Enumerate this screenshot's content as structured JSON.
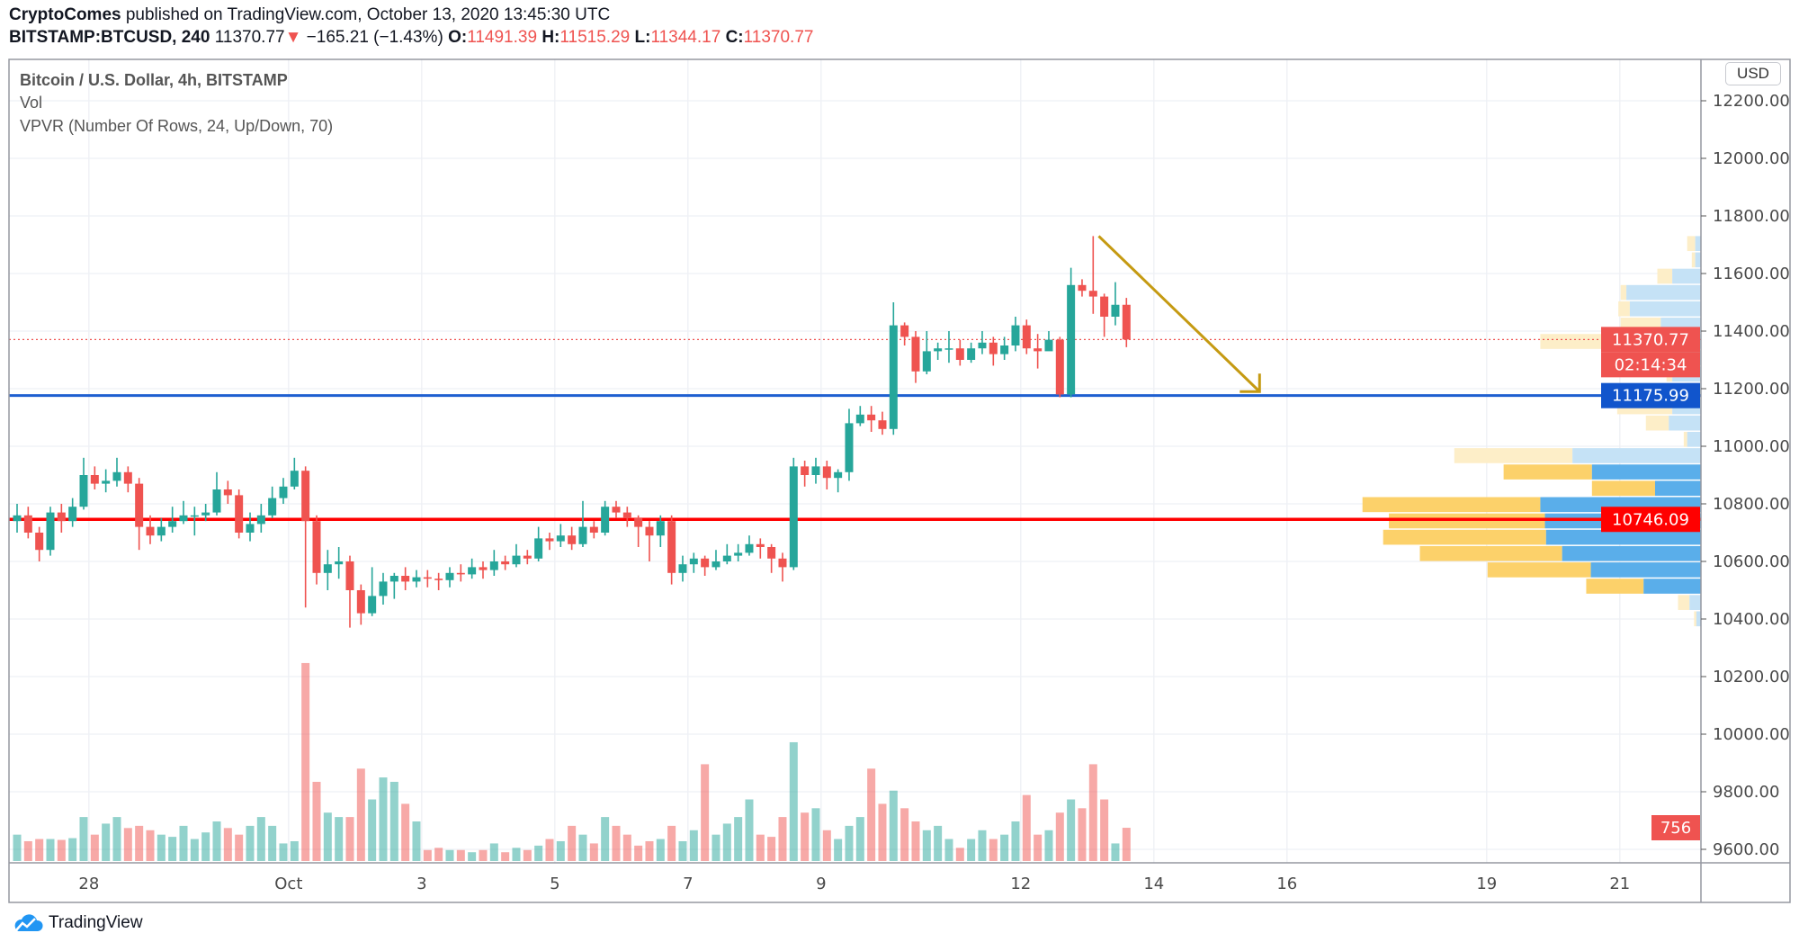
{
  "header": {
    "author": "CryptoComes",
    "published": "published on TradingView.com, October 13, 2020 13:45:30 UTC",
    "symbol": "BITSTAMP:BTCUSD, 240",
    "last": "11370.77",
    "change": "−165.21 (−1.43%)",
    "change_direction_icon": "triangle-down-icon",
    "o_label": "O:",
    "o": "11491.39",
    "h_label": "H:",
    "h": "11515.29",
    "l_label": "L:",
    "l": "11344.17",
    "c_label": "C:",
    "c": "11370.77"
  },
  "legend": {
    "title": "Bitcoin / U.S. Dollar, 4h, BITSTAMP",
    "vol": "Vol",
    "vpvr": "VPVR (Number Of Rows, 24, Up/Down, 70)"
  },
  "currency": "USD",
  "footer": {
    "brand": "TradingView",
    "logo_icon": "tradingview-cloud-icon"
  },
  "colors": {
    "up": "#26a69a",
    "down": "#ef5350",
    "support_blue": "#1e5fd0",
    "support_red": "#ff0000",
    "arrow": "#c59a12",
    "vp_up": "#5aaeea",
    "vp_down": "#fcd16a",
    "vp_up_light": "#c5e2f6",
    "vp_down_light": "#fdeec8"
  },
  "chart_data": {
    "type": "candlestick",
    "interval": "4h",
    "start": "2020-09-27 00:00",
    "ylim": [
      9560,
      12260
    ],
    "y_ticks": [
      "12200.00",
      "12000.00",
      "11800.00",
      "11600.00",
      "11400.00",
      "11200.00",
      "11000.00",
      "10800.00",
      "10600.00",
      "10400.00",
      "10200.00",
      "10000.00",
      "9800.00",
      "9600.00"
    ],
    "x_ticks": [
      {
        "label": "28",
        "day": 1
      },
      {
        "label": "Oct",
        "day": 4
      },
      {
        "label": "3",
        "day": 6
      },
      {
        "label": "5",
        "day": 8
      },
      {
        "label": "7",
        "day": 10
      },
      {
        "label": "9",
        "day": 12
      },
      {
        "label": "12",
        "day": 15
      },
      {
        "label": "14",
        "day": 17
      },
      {
        "label": "16",
        "day": 19
      },
      {
        "label": "19",
        "day": 22
      },
      {
        "label": "21",
        "day": 24
      }
    ],
    "first_open": 10740,
    "close": [
      10760,
      10700,
      10640,
      10770,
      10740,
      10790,
      10900,
      10870,
      10880,
      10910,
      10870,
      10720,
      10690,
      10720,
      10740,
      10760,
      10760,
      10770,
      10850,
      10830,
      10700,
      10730,
      10760,
      10820,
      10860,
      10915,
      10740,
      10560,
      10590,
      10600,
      10500,
      10420,
      10480,
      10530,
      10550,
      10530,
      10545,
      10540,
      10535,
      10560,
      10555,
      10580,
      10570,
      10600,
      10590,
      10620,
      10610,
      10680,
      10670,
      10690,
      10660,
      10720,
      10700,
      10790,
      10770,
      10750,
      10720,
      10690,
      10740,
      10560,
      10590,
      10610,
      10580,
      10600,
      10620,
      10630,
      10660,
      10650,
      10610,
      10580,
      10930,
      10900,
      10930,
      10890,
      10910,
      11080,
      11110,
      11090,
      11060,
      11420,
      11380,
      11260,
      11330,
      11340,
      11340,
      11300,
      11340,
      11360,
      11320,
      11350,
      11420,
      11340,
      11330,
      11370,
      11180,
      11560,
      11540,
      11520,
      11450,
      11491.39,
      11370.77
    ],
    "high": [
      10800,
      10790,
      10720,
      10790,
      10800,
      10820,
      10960,
      10930,
      10920,
      10960,
      10930,
      10890,
      10760,
      10750,
      10790,
      10810,
      10790,
      10800,
      10910,
      10880,
      10850,
      10770,
      10800,
      10860,
      10890,
      10960,
      10930,
      10760,
      10640,
      10650,
      10620,
      10520,
      10580,
      10560,
      10560,
      10580,
      10570,
      10570,
      10560,
      10580,
      10590,
      10610,
      10600,
      10640,
      10620,
      10660,
      10640,
      10720,
      10700,
      10730,
      10720,
      10810,
      10740,
      10810,
      10810,
      10790,
      10760,
      10740,
      10760,
      10760,
      10620,
      10630,
      10620,
      10640,
      10660,
      10660,
      10690,
      10680,
      10660,
      10630,
      10960,
      10950,
      10960,
      10950,
      10920,
      11130,
      11140,
      11140,
      11120,
      11500,
      11430,
      11400,
      11400,
      11360,
      11400,
      11370,
      11360,
      11400,
      11380,
      11380,
      11450,
      11440,
      11390,
      11400,
      11380,
      11620,
      11580,
      11730,
      11530,
      11570,
      11515.29
    ],
    "low": [
      10700,
      10680,
      10600,
      10620,
      10700,
      10720,
      10780,
      10850,
      10840,
      10860,
      10840,
      10640,
      10660,
      10670,
      10700,
      10730,
      10690,
      10740,
      10760,
      10800,
      10680,
      10670,
      10700,
      10750,
      10800,
      10850,
      10440,
      10520,
      10500,
      10540,
      10370,
      10380,
      10410,
      10450,
      10470,
      10500,
      10510,
      10510,
      10500,
      10510,
      10530,
      10540,
      10540,
      10550,
      10570,
      10580,
      10590,
      10600,
      10640,
      10650,
      10640,
      10650,
      10680,
      10690,
      10750,
      10720,
      10650,
      10600,
      10650,
      10520,
      10530,
      10560,
      10550,
      10570,
      10590,
      10600,
      10620,
      10610,
      10560,
      10530,
      10570,
      10860,
      10870,
      10850,
      10840,
      10880,
      11070,
      11050,
      11040,
      11040,
      11350,
      11220,
      11250,
      11300,
      11290,
      11280,
      11290,
      11320,
      11280,
      11300,
      11330,
      11320,
      11270,
      11340,
      11170,
      11170,
      11520,
      11460,
      11380,
      11420,
      11344.17
    ],
    "volume": [
      600,
      450,
      500,
      500,
      480,
      520,
      1000,
      600,
      850,
      1000,
      750,
      800,
      700,
      600,
      550,
      800,
      500,
      650,
      900,
      750,
      600,
      800,
      1000,
      800,
      400,
      450,
      4500,
      1800,
      1100,
      1000,
      1000,
      2100,
      1400,
      1900,
      1800,
      1300,
      900,
      250,
      300,
      250,
      250,
      200,
      250,
      400,
      200,
      300,
      250,
      350,
      500,
      450,
      800,
      600,
      400,
      1000,
      800,
      600,
      350,
      450,
      500,
      800,
      450,
      700,
      2200,
      600,
      850,
      1000,
      1400,
      600,
      550,
      1000,
      2700,
      1100,
      1200,
      700,
      500,
      800,
      1000,
      2100,
      1300,
      1600,
      1200,
      900,
      700,
      800,
      500,
      300,
      500,
      700,
      500,
      600,
      900,
      1500,
      600,
      700,
      1100,
      1400,
      1200,
      2200,
      1400,
      400,
      756
    ],
    "last_volume": "756",
    "levels": [
      {
        "name": "last-price",
        "price": 11370.77,
        "label": "11370.77",
        "countdown": "02:14:34"
      },
      {
        "name": "blue-level",
        "price": 11175.99,
        "label": "11175.99"
      },
      {
        "name": "red-level",
        "price": 10746.09,
        "label": "10746.09"
      }
    ],
    "arrow": {
      "from": {
        "candle": 97.5,
        "price": 11730
      },
      "to": {
        "candle": 112,
        "price": 11190
      }
    },
    "volume_profile": {
      "price_range": [
        10370,
        11730
      ],
      "rows": [
        {
          "total": 12,
          "up": 5,
          "va": false
        },
        {
          "total": 8,
          "up": 5,
          "va": false
        },
        {
          "total": 38,
          "up": 25,
          "va": false
        },
        {
          "total": 70,
          "up": 65,
          "va": false
        },
        {
          "total": 72,
          "up": 62,
          "va": false
        },
        {
          "total": 70,
          "up": 35,
          "va": false
        },
        {
          "total": 140,
          "up": 72,
          "va": false
        },
        {
          "total": 55,
          "up": 25,
          "va": false
        },
        {
          "total": 30,
          "up": 25,
          "va": false
        },
        {
          "total": 14,
          "up": 12,
          "va": false
        },
        {
          "total": 73,
          "up": 25,
          "va": false
        },
        {
          "total": 48,
          "up": 28,
          "va": false
        },
        {
          "total": 15,
          "up": 12,
          "va": false
        },
        {
          "total": 215,
          "up": 112,
          "va": false
        },
        {
          "total": 172,
          "up": 95,
          "va": true
        },
        {
          "total": 95,
          "up": 40,
          "va": true
        },
        {
          "total": 295,
          "up": 140,
          "va": true
        },
        {
          "total": 272,
          "up": 136,
          "va": true
        },
        {
          "total": 277,
          "up": 135,
          "va": true
        },
        {
          "total": 245,
          "up": 121,
          "va": true
        },
        {
          "total": 186,
          "up": 96,
          "va": true
        },
        {
          "total": 100,
          "up": 50,
          "va": true
        },
        {
          "total": 20,
          "up": 10,
          "va": false
        },
        {
          "total": 6,
          "up": 4,
          "va": false
        }
      ]
    }
  }
}
